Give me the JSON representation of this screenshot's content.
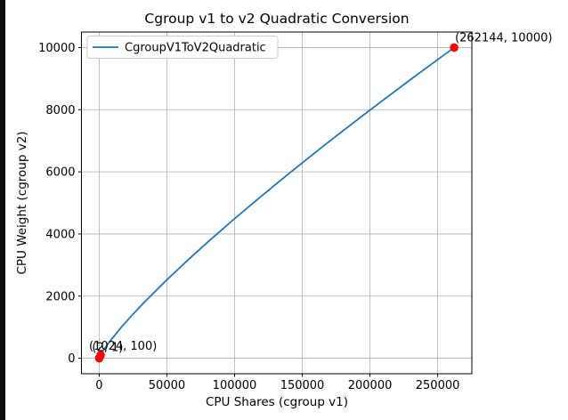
{
  "window": {
    "edge_color": "#0a0c12",
    "background": "#ffffff"
  },
  "chart_data": {
    "type": "line",
    "title": "Cgroup v1 to v2 Quadratic Conversion",
    "xlabel": "CPU Shares (cgroup v1)",
    "ylabel": "CPU Weight (cgroup v2)",
    "grid": true,
    "legend": {
      "position": "upper left",
      "entries": [
        "CgroupV1ToV2Quadratic"
      ]
    },
    "xlim": [
      -13105,
      275251
    ],
    "ylim": [
      -499,
      10500
    ],
    "xticks": [
      0,
      50000,
      100000,
      150000,
      200000,
      250000
    ],
    "yticks": [
      0,
      2000,
      4000,
      6000,
      8000,
      10000
    ],
    "series": [
      {
        "name": "CgroupV1ToV2Quadratic",
        "color": "#1f77b4",
        "x": [
          2,
          1024,
          4096,
          8192,
          16384,
          24576,
          32768,
          49152,
          65536,
          81920,
          98304,
          114688,
          131072,
          147456,
          163840,
          180224,
          196608,
          212992,
          229376,
          245760,
          262144
        ],
        "y": [
          1,
          100,
          316,
          562,
          1000,
          1400,
          1779,
          2490,
          3162,
          3806,
          4428,
          5033,
          5623,
          6201,
          6771,
          7326,
          7875,
          8416,
          8950,
          9478,
          10000
        ]
      }
    ],
    "markers": {
      "color": "#ff0000",
      "points": [
        {
          "x": 2,
          "y": 1,
          "label": "(2, 1)",
          "offset": [
            -8,
            -8
          ]
        },
        {
          "x": 1024,
          "y": 100,
          "label": "(1024, 100)",
          "offset": [
            -13,
            -6
          ]
        },
        {
          "x": 262144,
          "y": 10000,
          "label": "(262144, 10000)",
          "offset": [
            1,
            -7
          ]
        }
      ]
    },
    "colors": {
      "grid": "#b0b0b0",
      "spine": "#000000",
      "legend_border": "#cccccc",
      "legend_bg": "#ffffff"
    }
  }
}
